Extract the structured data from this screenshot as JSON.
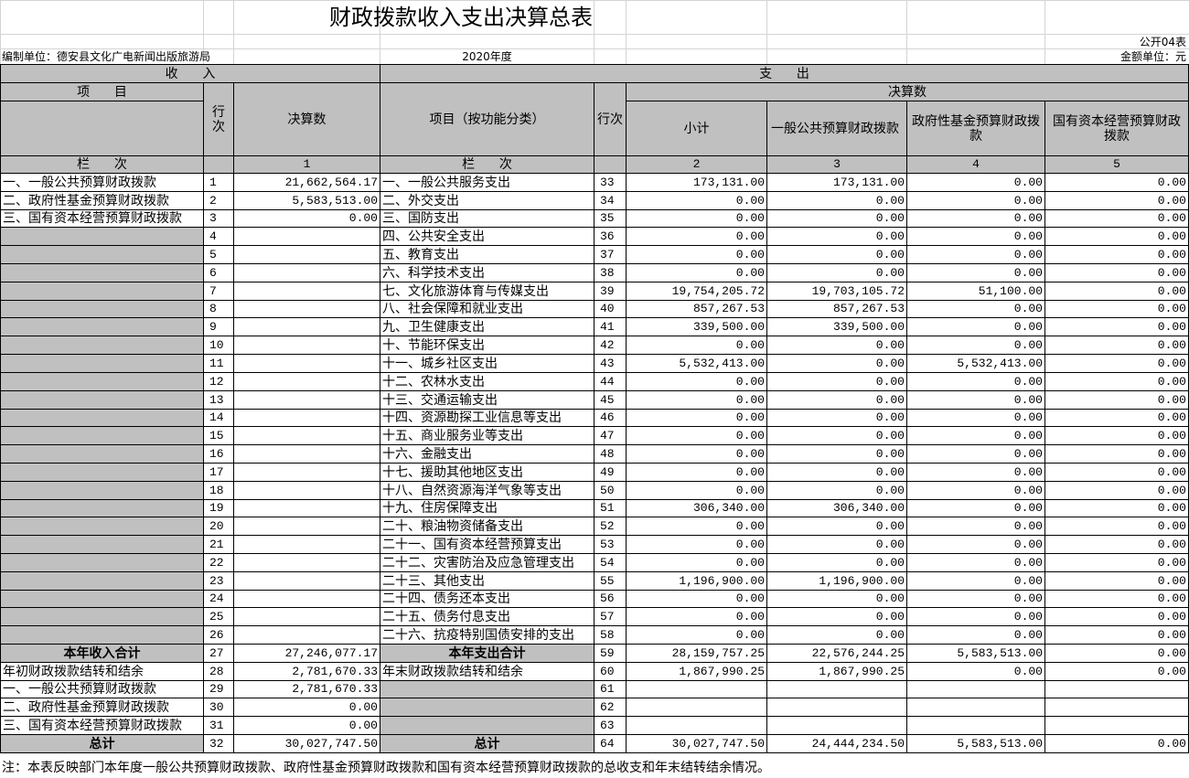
{
  "title": "财政拨款收入支出决算总表",
  "form_no": "公开04表",
  "unit": "编制单位：德安县文化广电新闻出版旅游局",
  "year": "2020年度",
  "currency": "金额单位：元",
  "header": {
    "income": "收      入",
    "expense": "支      出",
    "item": "项      目",
    "line": "行次",
    "amount": "决算数",
    "func_item": "项目（按功能分类）",
    "line2": "行次",
    "final": "决算数",
    "subtotal": "小计",
    "general": "一般公共预算财政拨款",
    "fund": "政府性基金预算财政拨款",
    "state": "国有资本经营预算财政拨款",
    "col_label": "栏      次",
    "col_label2": "栏      次",
    "col_nums": [
      1,
      2,
      3,
      4,
      5
    ]
  },
  "rows": [
    [
      "一、一般公共预算财政拨款",
      1,
      "21,662,564.17",
      "一、一般公共服务支出",
      33,
      "173,131.00",
      "173,131.00",
      "0.00",
      "0.00"
    ],
    [
      "二、政府性基金预算财政拨款",
      2,
      "5,583,513.00",
      "二、外交支出",
      34,
      "0.00",
      "0.00",
      "0.00",
      "0.00"
    ],
    [
      "三、国有资本经营预算财政拨款",
      3,
      "0.00",
      "三、国防支出",
      35,
      "0.00",
      "0.00",
      "0.00",
      "0.00"
    ],
    [
      null,
      4,
      null,
      "四、公共安全支出",
      36,
      "0.00",
      "0.00",
      "0.00",
      "0.00"
    ],
    [
      null,
      5,
      null,
      "五、教育支出",
      37,
      "0.00",
      "0.00",
      "0.00",
      "0.00"
    ],
    [
      null,
      6,
      null,
      "六、科学技术支出",
      38,
      "0.00",
      "0.00",
      "0.00",
      "0.00"
    ],
    [
      null,
      7,
      null,
      "七、文化旅游体育与传媒支出",
      39,
      "19,754,205.72",
      "19,703,105.72",
      "51,100.00",
      "0.00"
    ],
    [
      null,
      8,
      null,
      "八、社会保障和就业支出",
      40,
      "857,267.53",
      "857,267.53",
      "0.00",
      "0.00"
    ],
    [
      null,
      9,
      null,
      "九、卫生健康支出",
      41,
      "339,500.00",
      "339,500.00",
      "0.00",
      "0.00"
    ],
    [
      null,
      10,
      null,
      "十、节能环保支出",
      42,
      "0.00",
      "0.00",
      "0.00",
      "0.00"
    ],
    [
      null,
      11,
      null,
      "十一、城乡社区支出",
      43,
      "5,532,413.00",
      "0.00",
      "5,532,413.00",
      "0.00"
    ],
    [
      null,
      12,
      null,
      "十二、农林水支出",
      44,
      "0.00",
      "0.00",
      "0.00",
      "0.00"
    ],
    [
      null,
      13,
      null,
      "十三、交通运输支出",
      45,
      "0.00",
      "0.00",
      "0.00",
      "0.00"
    ],
    [
      null,
      14,
      null,
      "十四、资源勘探工业信息等支出",
      46,
      "0.00",
      "0.00",
      "0.00",
      "0.00"
    ],
    [
      null,
      15,
      null,
      "十五、商业服务业等支出",
      47,
      "0.00",
      "0.00",
      "0.00",
      "0.00"
    ],
    [
      null,
      16,
      null,
      "十六、金融支出",
      48,
      "0.00",
      "0.00",
      "0.00",
      "0.00"
    ],
    [
      null,
      17,
      null,
      "十七、援助其他地区支出",
      49,
      "0.00",
      "0.00",
      "0.00",
      "0.00"
    ],
    [
      null,
      18,
      null,
      "十八、自然资源海洋气象等支出",
      50,
      "0.00",
      "0.00",
      "0.00",
      "0.00"
    ],
    [
      null,
      19,
      null,
      "十九、住房保障支出",
      51,
      "306,340.00",
      "306,340.00",
      "0.00",
      "0.00"
    ],
    [
      null,
      20,
      null,
      "二十、粮油物资储备支出",
      52,
      "0.00",
      "0.00",
      "0.00",
      "0.00"
    ],
    [
      null,
      21,
      null,
      "二十一、国有资本经营预算支出",
      53,
      "0.00",
      "0.00",
      "0.00",
      "0.00"
    ],
    [
      null,
      22,
      null,
      "二十二、灾害防治及应急管理支出",
      54,
      "0.00",
      "0.00",
      "0.00",
      "0.00"
    ],
    [
      null,
      23,
      null,
      "二十三、其他支出",
      55,
      "1,196,900.00",
      "1,196,900.00",
      "0.00",
      "0.00"
    ],
    [
      null,
      24,
      null,
      "二十四、债务还本支出",
      56,
      "0.00",
      "0.00",
      "0.00",
      "0.00"
    ],
    [
      null,
      25,
      null,
      "二十五、债务付息支出",
      57,
      "0.00",
      "0.00",
      "0.00",
      "0.00"
    ],
    [
      null,
      26,
      null,
      "二十六、抗疫特别国债安排的支出",
      58,
      "0.00",
      "0.00",
      "0.00",
      "0.00"
    ],
    [
      "本年收入合计",
      27,
      "27,246,077.17",
      "本年支出合计",
      59,
      "28,159,757.25",
      "22,576,244.25",
      "5,583,513.00",
      "0.00"
    ],
    [
      "年初财政拨款结转和结余",
      28,
      "2,781,670.33",
      "年末财政拨款结转和结余",
      60,
      "1,867,990.25",
      "1,867,990.25",
      "0.00",
      "0.00"
    ],
    [
      "一、一般公共预算财政拨款",
      29,
      "2,781,670.33",
      null,
      61,
      null,
      null,
      null,
      null
    ],
    [
      "二、政府性基金预算财政拨款",
      30,
      "0.00",
      null,
      62,
      null,
      null,
      null,
      null
    ],
    [
      "三、国有资本经营预算财政拨款",
      31,
      "0.00",
      null,
      63,
      null,
      null,
      null,
      null
    ],
    [
      "总计",
      32,
      "30,027,747.50",
      "总计",
      64,
      "30,027,747.50",
      "24,444,234.50",
      "5,583,513.00",
      "0.00"
    ]
  ],
  "note": "注：本表反映部门本年度一般公共预算财政拨款、政府性基金预算财政拨款和国有资本经营预算财政拨款的总收支和年末结转结余情况。"
}
